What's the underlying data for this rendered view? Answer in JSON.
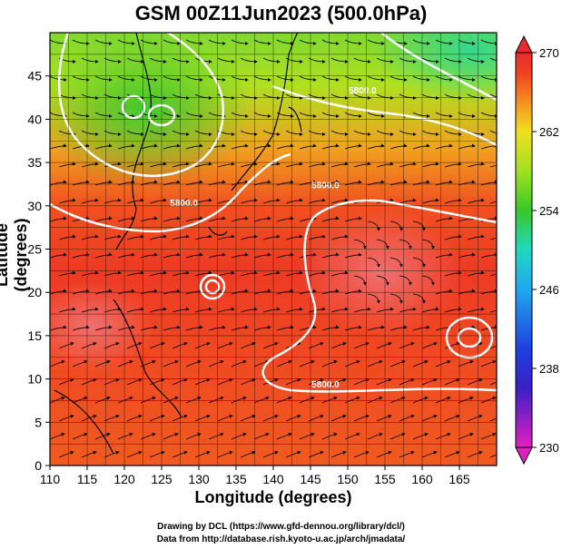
{
  "title": "GSM 00Z11Jun2023 (500.0hPa)",
  "credits": {
    "line1": "Drawing by DCL (https://www.gfd-dennou.org/library/dcl/)",
    "line2": "Data from http://database.rish.kyoto-u.ac.jp/arch/jmadata/"
  },
  "chart_data": {
    "type": "heatmap",
    "title": "GSM 00Z11Jun2023 (500.0hPa)",
    "xlabel": "Longitude (degrees)",
    "ylabel": "Latitude  (degrees)",
    "xlim": [
      110,
      170
    ],
    "ylim": [
      0,
      50
    ],
    "xticks": [
      "110",
      "115",
      "120",
      "125",
      "130",
      "135",
      "140",
      "145",
      "150",
      "155",
      "160",
      "165"
    ],
    "xtick_values": [
      110,
      115,
      120,
      125,
      130,
      135,
      140,
      145,
      150,
      155,
      160,
      165
    ],
    "yticks": [
      "0",
      "5",
      "10",
      "15",
      "20",
      "25",
      "30",
      "35",
      "40",
      "45"
    ],
    "ytick_values": [
      0,
      5,
      10,
      15,
      20,
      25,
      30,
      35,
      40,
      45
    ],
    "grid": true,
    "overlay": "streamlines",
    "colorbar": {
      "min": 230,
      "max": 270,
      "ticks": [
        "230",
        "238",
        "246",
        "254",
        "262",
        "270"
      ],
      "tick_values": [
        230,
        238,
        246,
        254,
        262,
        270
      ],
      "colors": [
        {
          "value": 230,
          "color": "#e020c0"
        },
        {
          "value": 236,
          "color": "#3a20c8"
        },
        {
          "value": 240,
          "color": "#1e40e0"
        },
        {
          "value": 246,
          "color": "#20a8f0"
        },
        {
          "value": 250,
          "color": "#20d8c0"
        },
        {
          "value": 254,
          "color": "#38c828"
        },
        {
          "value": 258,
          "color": "#a0e020"
        },
        {
          "value": 262,
          "color": "#f0e020"
        },
        {
          "value": 265,
          "color": "#f59020"
        },
        {
          "value": 268,
          "color": "#f04020"
        },
        {
          "value": 270,
          "color": "#e82c2c"
        }
      ]
    },
    "contours": [
      {
        "label": "5800.0",
        "lon": 152,
        "lat": 43
      },
      {
        "label": "5800.0",
        "lon": 128,
        "lat": 30
      },
      {
        "label": "5800.0",
        "lon": 147,
        "lat": 32
      },
      {
        "label": "5800.0",
        "lon": 147,
        "lat": 9
      }
    ]
  }
}
